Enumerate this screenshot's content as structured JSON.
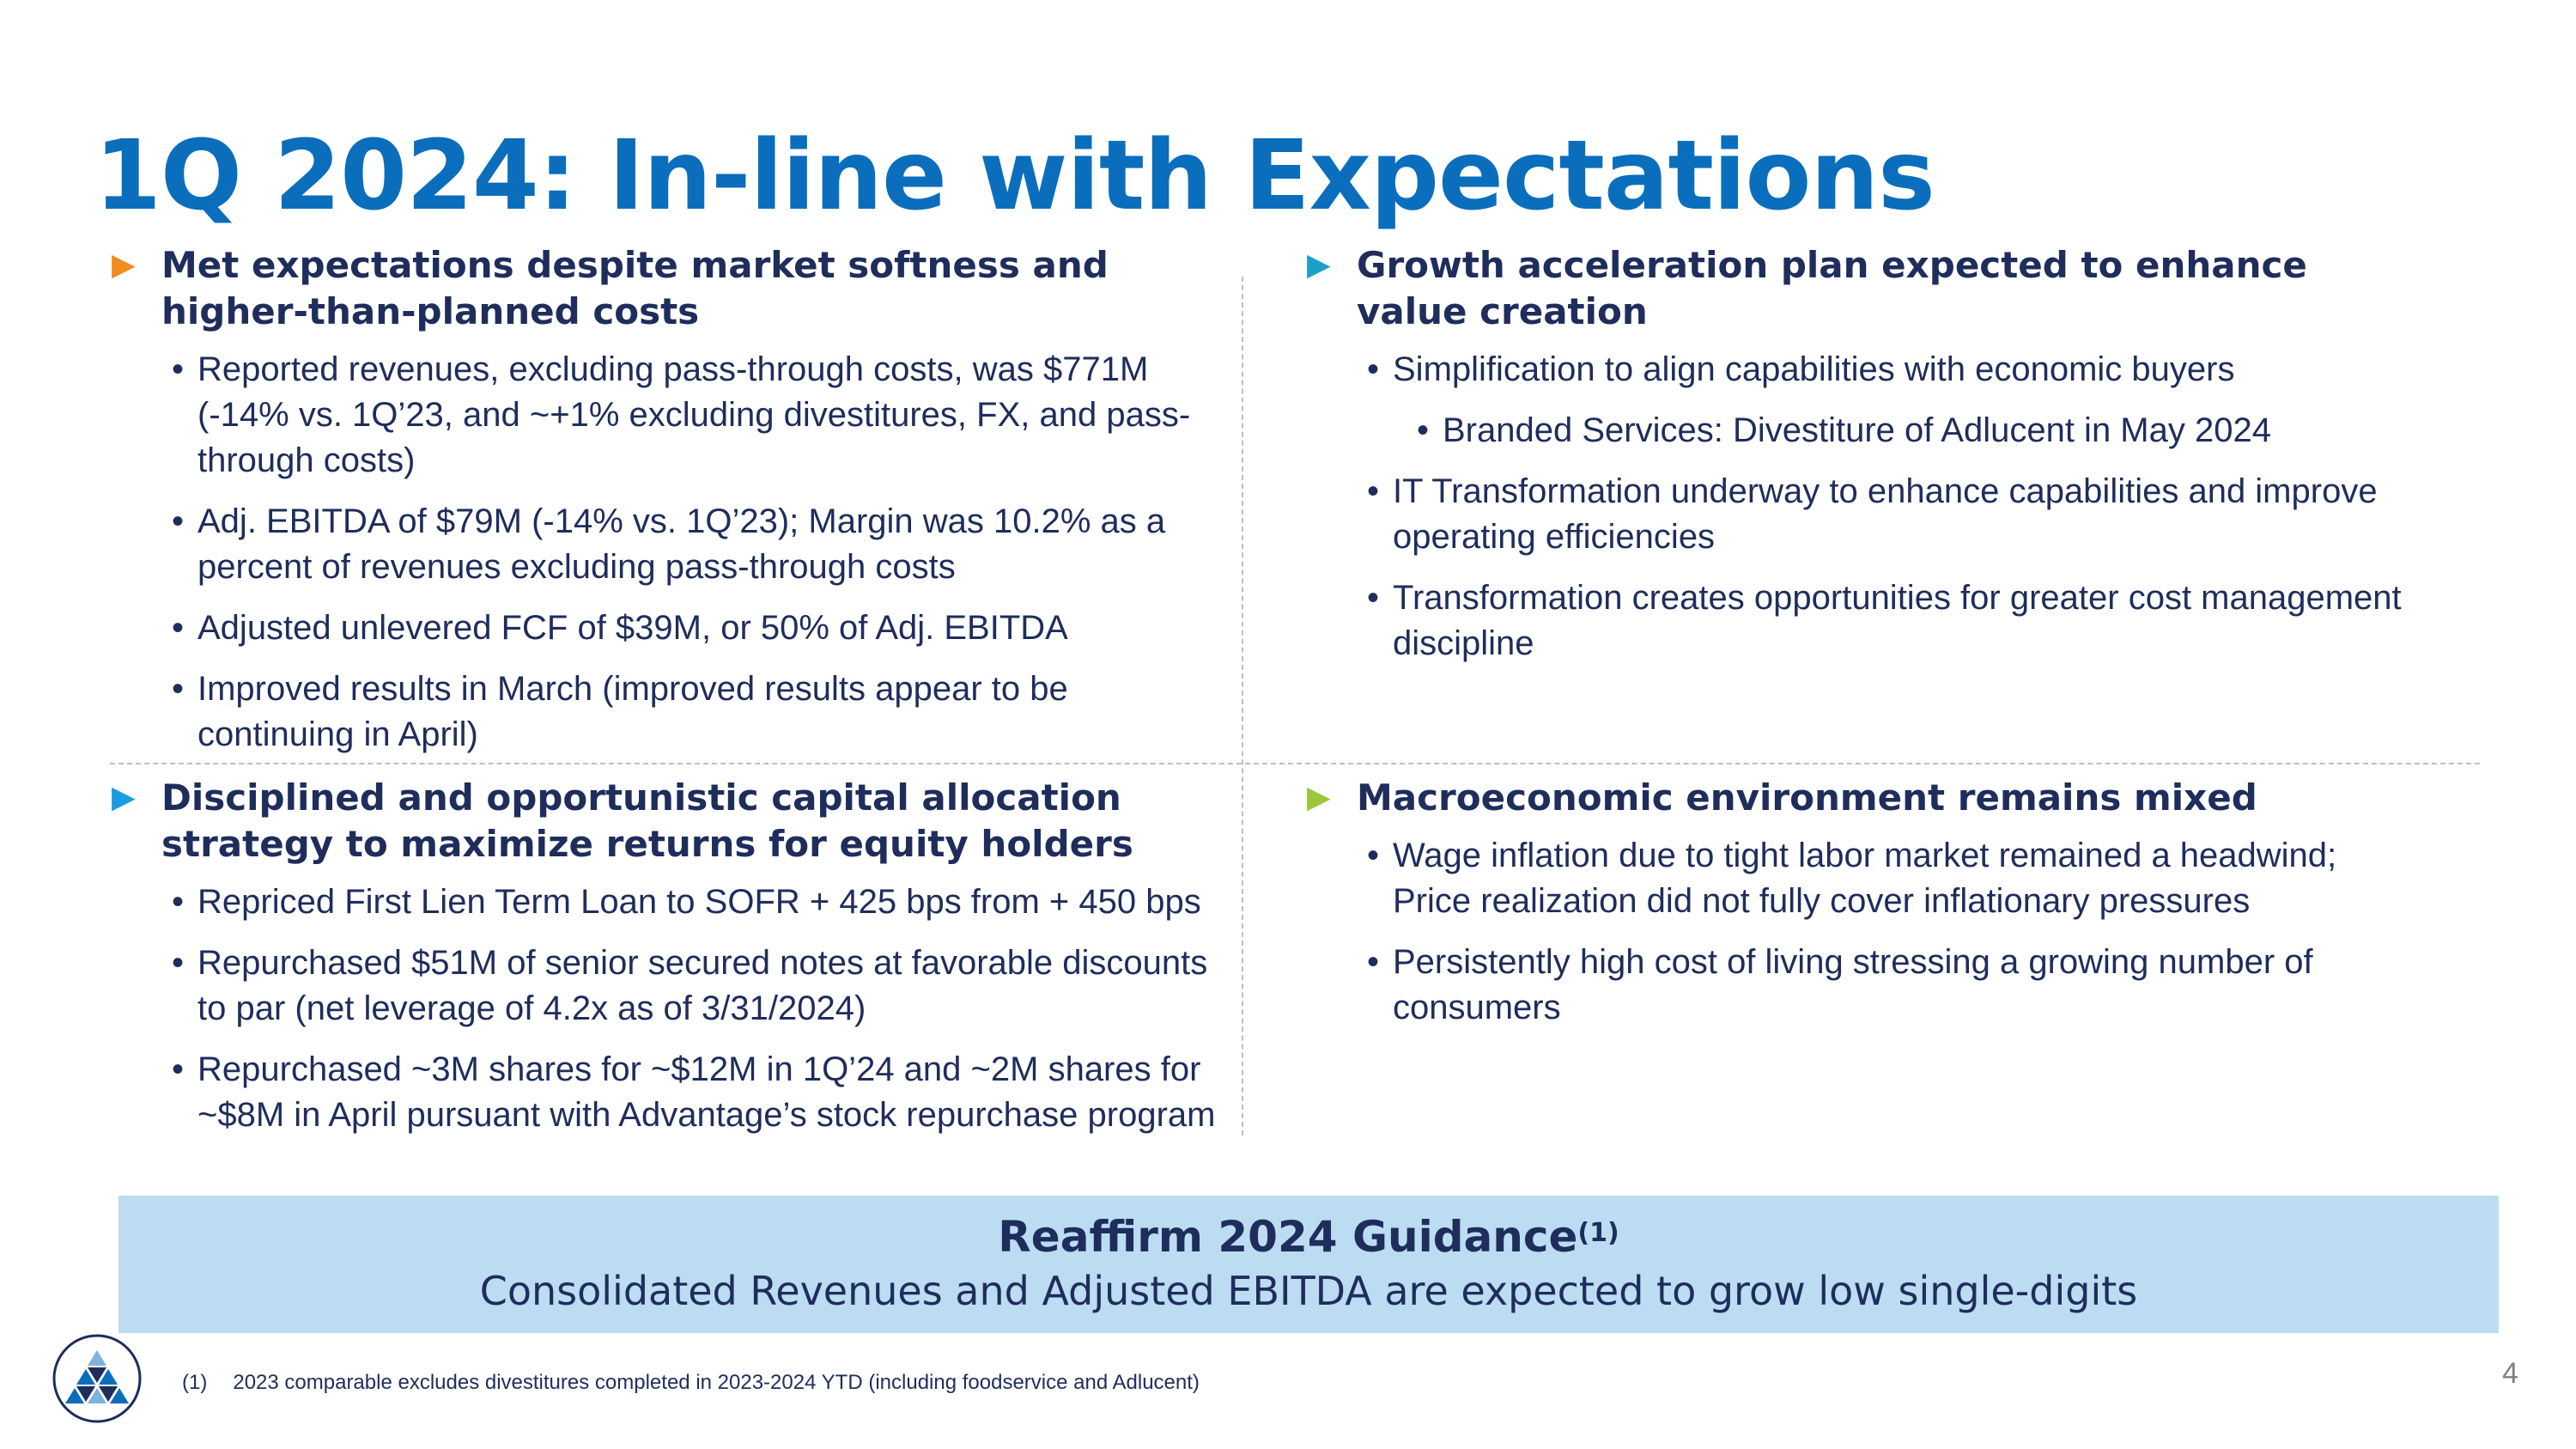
{
  "title": "1Q 2024: In-line with Expectations",
  "colors": {
    "title": "#0a6ebd",
    "text": "#1f2d5c",
    "banner_bg": "#bcdcf2",
    "arrow_orange": "#f28c1e",
    "arrow_teal": "#1ba1c9",
    "arrow_blue": "#1b9be0",
    "arrow_green": "#9bc83a"
  },
  "icons": {
    "arrow": "triangle-right-icon",
    "logo": "advantage-logo"
  },
  "top_left": {
    "heading": "Met expectations despite market softness and higher-than-planned costs",
    "bullets": [
      "Reported revenues, excluding pass-through costs, was $771M (-14% vs. 1Q’23, and ~+1% excluding divestitures, FX, and pass-through costs)",
      "Adj. EBITDA of $79M (-14% vs. 1Q’23); Margin was 10.2% as a percent of revenues excluding pass-through costs",
      "Adjusted unlevered FCF of $39M, or 50% of Adj. EBITDA",
      "Improved results in March (improved results appear to be continuing in April)"
    ]
  },
  "top_right": {
    "heading": "Growth acceleration plan expected to enhance value creation",
    "bullet1": "Simplification to align capabilities with economic buyers",
    "sub_bullet": "Branded Services: Divestiture of Adlucent in May 2024",
    "bullets_rest": [
      "IT Transformation underway to enhance capabilities and improve operating efficiencies",
      "Transformation creates opportunities for greater cost management discipline"
    ]
  },
  "bottom_left": {
    "heading": "Disciplined and opportunistic capital allocation strategy to maximize returns for equity holders",
    "bullets": [
      "Repriced First Lien Term Loan to SOFR + 425 bps from + 450 bps",
      "Repurchased $51M of senior secured notes at favorable discounts to par (net leverage of 4.2x as of 3/31/2024)",
      "Repurchased ~3M shares for ~$12M in 1Q’24 and ~2M shares for ~$8M in April pursuant with Advantage’s stock repurchase program"
    ]
  },
  "bottom_right": {
    "heading": "Macroeconomic environment remains mixed",
    "bullets": [
      "Wage inflation due to tight labor market remained a headwind; Price realization did not fully cover inflationary pressures",
      "Persistently high cost of living stressing a growing number of consumers"
    ]
  },
  "banner": {
    "title": "Reaffirm 2024 Guidance",
    "superscript": "(1)",
    "subtitle": "Consolidated Revenues and Adjusted EBITDA are expected to grow low single-digits"
  },
  "footnote": {
    "number": "(1)",
    "text": "2023 comparable excludes divestitures completed in 2023-2024 YTD (including foodservice and Adlucent)"
  },
  "page_number": "4"
}
